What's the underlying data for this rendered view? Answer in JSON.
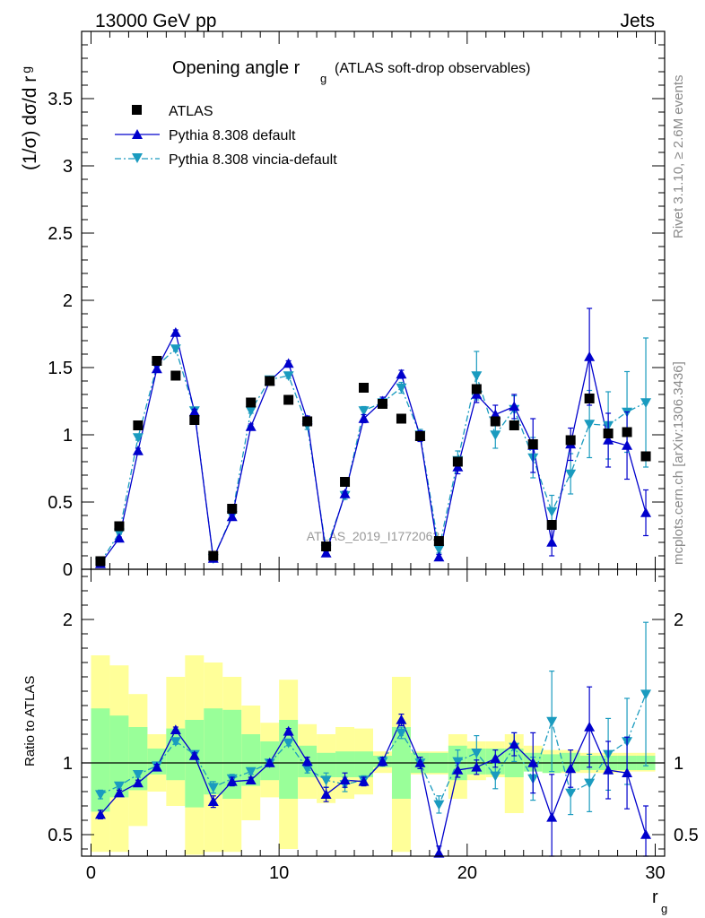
{
  "header": {
    "left": "13000 GeV pp",
    "right": "Jets"
  },
  "side_texts": {
    "rivet": "Rivet 3.1.10, ≥ 2.6M events",
    "mcplots": "mcplots.cern.ch [arXiv:1306.3436]"
  },
  "watermark": "ATLAS_2019_I1772062",
  "chart_data": {
    "type": "scatter",
    "title": "Opening angle r",
    "title_sub": "g",
    "title_note": "(ATLAS soft-drop observables)",
    "ylabel_main": "(1/σ) dσ/d r",
    "ylabel_main_sub": "g",
    "ylabel_ratio": "Ratio to ATLAS",
    "xlabel": "r",
    "xlabel_sub": "g",
    "xlim": [
      -0.5,
      30.5
    ],
    "ylim_main": [
      0,
      4
    ],
    "ylim_ratio": [
      0.35,
      2.35
    ],
    "x_ticks": [
      "0",
      "10",
      "20",
      "30"
    ],
    "y_ticks_main": [
      "0",
      "0.5",
      "1",
      "1.5",
      "2",
      "2.5",
      "3",
      "3.5"
    ],
    "y_ticks_ratio": [
      "0.5",
      "1",
      "2"
    ],
    "legend": [
      "ATLAS",
      "Pythia 8.308 default",
      "Pythia 8.308 vincia-default"
    ],
    "colors": {
      "data": "#000000",
      "default": "#0000cc",
      "vincia": "#1a9bbf",
      "band_inner": "#99ff99",
      "band_outer": "#ffff99"
    },
    "x": [
      0.5,
      1.5,
      2.5,
      3.5,
      4.5,
      5.5,
      6.5,
      7.5,
      8.5,
      9.5,
      10.5,
      11.5,
      12.5,
      13.5,
      14.5,
      15.5,
      16.5,
      17.5,
      18.5,
      19.5,
      20.5,
      21.5,
      22.5,
      23.5,
      24.5,
      25.5,
      26.5,
      27.5,
      28.5,
      29.5
    ],
    "atlas": [
      0.06,
      0.32,
      1.07,
      1.55,
      1.44,
      1.11,
      0.1,
      0.45,
      1.24,
      1.4,
      1.26,
      1.1,
      0.17,
      0.65,
      1.35,
      1.23,
      1.12,
      0.99,
      0.21,
      0.8,
      1.34,
      1.1,
      1.07,
      0.93,
      0.33,
      0.96,
      1.27,
      1.01,
      1.02,
      0.84
    ],
    "pythia_default": [
      0.04,
      0.23,
      0.88,
      1.49,
      1.76,
      1.17,
      0.08,
      0.39,
      1.06,
      1.4,
      1.53,
      1.11,
      0.12,
      0.56,
      1.12,
      1.25,
      1.45,
      0.99,
      0.09,
      0.76,
      1.3,
      1.15,
      1.21,
      0.92,
      0.2,
      0.93,
      1.58,
      0.96,
      0.92,
      0.42
    ],
    "pythia_default_err": [
      0.005,
      0.01,
      0.02,
      0.02,
      0.02,
      0.02,
      0.01,
      0.02,
      0.02,
      0.02,
      0.02,
      0.03,
      0.01,
      0.02,
      0.03,
      0.03,
      0.03,
      0.04,
      0.02,
      0.05,
      0.06,
      0.07,
      0.09,
      0.2,
      0.1,
      0.12,
      0.36,
      0.2,
      0.25,
      0.17
    ],
    "pythia_vincia": [
      0.05,
      0.27,
      0.98,
      1.51,
      1.64,
      1.18,
      0.08,
      0.4,
      1.18,
      1.41,
      1.44,
      1.07,
      0.15,
      0.55,
      1.18,
      1.24,
      1.35,
      1.0,
      0.15,
      0.81,
      1.44,
      1.0,
      1.19,
      0.83,
      0.43,
      0.71,
      1.08,
      1.07,
      1.17,
      1.24
    ],
    "pythia_vincia_err": [
      0.005,
      0.01,
      0.02,
      0.02,
      0.02,
      0.02,
      0.01,
      0.02,
      0.02,
      0.02,
      0.02,
      0.03,
      0.01,
      0.03,
      0.03,
      0.03,
      0.04,
      0.04,
      0.03,
      0.07,
      0.18,
      0.1,
      0.1,
      0.15,
      0.12,
      0.15,
      0.25,
      0.25,
      0.3,
      0.48
    ],
    "ratio_default": [
      0.64,
      0.79,
      0.86,
      0.97,
      1.23,
      1.05,
      0.73,
      0.87,
      0.88,
      1.0,
      1.22,
      1.01,
      0.78,
      0.88,
      0.87,
      1.01,
      1.3,
      1.0,
      0.37,
      0.95,
      0.97,
      1.03,
      1.13,
      1.0,
      0.62,
      0.96,
      1.25,
      0.95,
      0.93,
      0.5
    ],
    "ratio_default_err": [
      0.03,
      0.02,
      0.02,
      0.02,
      0.02,
      0.02,
      0.04,
      0.03,
      0.02,
      0.02,
      0.02,
      0.03,
      0.05,
      0.05,
      0.03,
      0.03,
      0.04,
      0.04,
      0.05,
      0.05,
      0.05,
      0.06,
      0.08,
      0.21,
      0.3,
      0.13,
      0.28,
      0.2,
      0.25,
      0.2
    ],
    "ratio_vincia": [
      0.78,
      0.84,
      0.92,
      0.98,
      1.15,
      1.06,
      0.83,
      0.89,
      0.94,
      1.0,
      1.14,
      0.96,
      0.88,
      0.85,
      0.88,
      1.01,
      1.21,
      1.0,
      0.71,
      1.01,
      1.07,
      0.91,
      1.11,
      0.89,
      1.29,
      0.79,
      0.86,
      1.06,
      1.15,
      1.48
    ],
    "ratio_vincia_err": [
      0.03,
      0.02,
      0.02,
      0.02,
      0.02,
      0.02,
      0.04,
      0.03,
      0.02,
      0.02,
      0.02,
      0.03,
      0.05,
      0.05,
      0.03,
      0.03,
      0.04,
      0.04,
      0.06,
      0.08,
      0.12,
      0.09,
      0.1,
      0.15,
      0.35,
      0.15,
      0.2,
      0.25,
      0.3,
      0.5
    ],
    "band_inner": [
      [
        0.66,
        1.38
      ],
      [
        0.76,
        1.33
      ],
      [
        0.81,
        1.25
      ],
      [
        0.92,
        1.1
      ],
      [
        0.88,
        1.24
      ],
      [
        0.69,
        1.3
      ],
      [
        0.78,
        1.38
      ],
      [
        0.75,
        1.37
      ],
      [
        0.84,
        1.2
      ],
      [
        0.88,
        1.15
      ],
      [
        0.75,
        1.3
      ],
      [
        0.9,
        1.12
      ],
      [
        0.9,
        1.07
      ],
      [
        0.9,
        1.08
      ],
      [
        0.9,
        1.08
      ],
      [
        0.97,
        1.05
      ],
      [
        0.75,
        1.25
      ],
      [
        0.93,
        1.07
      ],
      [
        0.93,
        1.07
      ],
      [
        0.88,
        1.12
      ],
      [
        0.92,
        1.1
      ],
      [
        0.92,
        1.1
      ],
      [
        0.9,
        1.1
      ],
      [
        0.94,
        1.07
      ],
      [
        0.93,
        1.06
      ],
      [
        0.94,
        1.07
      ],
      [
        0.95,
        1.05
      ],
      [
        0.95,
        1.05
      ],
      [
        0.95,
        1.05
      ],
      [
        0.95,
        1.05
      ]
    ],
    "band_outer": [
      [
        0.38,
        1.75
      ],
      [
        0.38,
        1.68
      ],
      [
        0.56,
        1.48
      ],
      [
        0.8,
        1.2
      ],
      [
        0.7,
        1.6
      ],
      [
        0.36,
        1.75
      ],
      [
        0.38,
        1.7
      ],
      [
        0.38,
        1.6
      ],
      [
        0.6,
        1.4
      ],
      [
        0.76,
        1.28
      ],
      [
        0.4,
        1.58
      ],
      [
        0.75,
        1.27
      ],
      [
        0.72,
        1.2
      ],
      [
        0.75,
        1.25
      ],
      [
        0.78,
        1.24
      ],
      [
        0.93,
        1.08
      ],
      [
        0.38,
        1.6
      ],
      [
        0.92,
        1.08
      ],
      [
        0.92,
        1.08
      ],
      [
        0.75,
        1.2
      ],
      [
        0.88,
        1.15
      ],
      [
        0.9,
        1.15
      ],
      [
        0.65,
        1.2
      ],
      [
        0.94,
        1.12
      ],
      [
        0.93,
        1.09
      ],
      [
        0.93,
        1.09
      ],
      [
        0.93,
        1.07
      ],
      [
        0.93,
        1.07
      ],
      [
        0.94,
        1.07
      ],
      [
        0.94,
        1.07
      ]
    ]
  }
}
